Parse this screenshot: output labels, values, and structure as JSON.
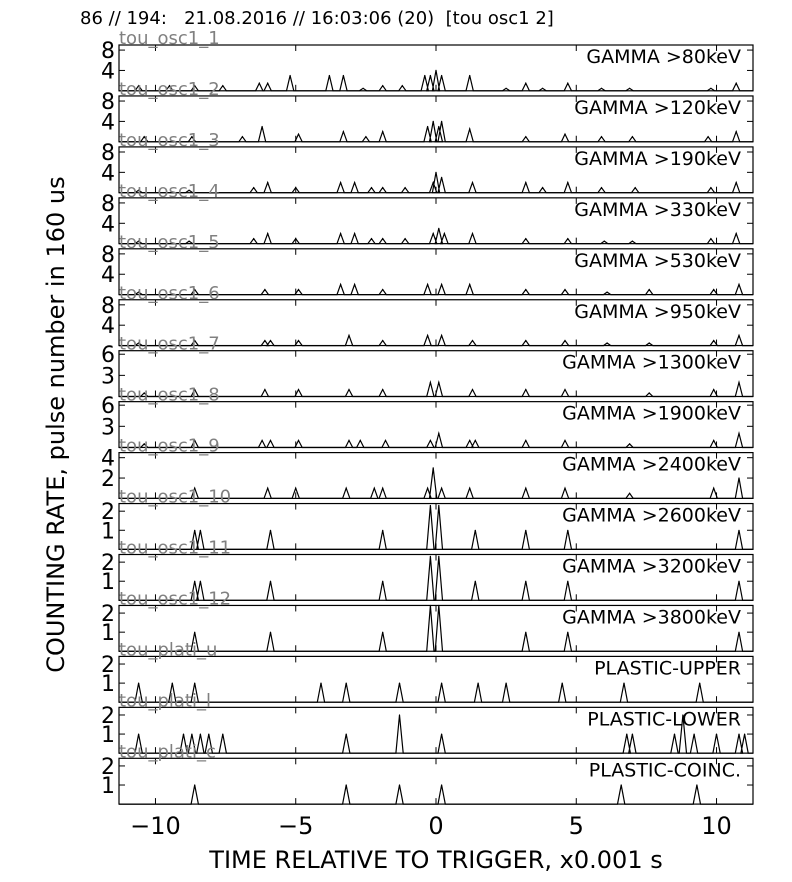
{
  "header": "86 // 194:   21.08.2016 // 16:03:06 (20)  [tou osc1 2]",
  "xlabel": "TIME RELATIVE TO TRIGGER,   x0.001 s",
  "ylabel": "COUNTING RATE,    pulse number in 160 us",
  "colors": {
    "line": "#000000",
    "channel_label": "#808080"
  },
  "chart_data": {
    "type": "line",
    "xlim": [
      -11.3,
      11.3
    ],
    "xticks": [
      -10,
      -5,
      0,
      5,
      10
    ],
    "xtick_labels": [
      "−10",
      "−5",
      "0",
      "5",
      "10"
    ],
    "panels": [
      {
        "channel": "tou_osc1_1",
        "label": "GAMMA >80keV",
        "ylim": [
          0,
          9
        ],
        "yticks": [
          4,
          8
        ],
        "points": [
          [
            -10.6,
            1
          ],
          [
            -9.5,
            1
          ],
          [
            -8.6,
            1
          ],
          [
            -7.6,
            1
          ],
          [
            -6.3,
            1.5
          ],
          [
            -6,
            1.5
          ],
          [
            -5.2,
            3
          ],
          [
            -3.8,
            3
          ],
          [
            -3.3,
            3
          ],
          [
            -2.6,
            0.5
          ],
          [
            -1.9,
            1
          ],
          [
            -1.2,
            1
          ],
          [
            -0.4,
            3
          ],
          [
            -0.2,
            3
          ],
          [
            0,
            4
          ],
          [
            0.2,
            3
          ],
          [
            1.2,
            3
          ],
          [
            2.5,
            0.5
          ],
          [
            3.2,
            1.5
          ],
          [
            3.8,
            0.5
          ],
          [
            4.7,
            1.5
          ],
          [
            5.9,
            0.5
          ],
          [
            6.9,
            0.5
          ],
          [
            9.8,
            0.5
          ],
          [
            10.7,
            1.5
          ]
        ]
      },
      {
        "channel": "tou_osc1_2",
        "label": "GAMMA >120keV",
        "ylim": [
          0,
          9
        ],
        "yticks": [
          4,
          8
        ],
        "points": [
          [
            -10.4,
            1
          ],
          [
            -8.7,
            1
          ],
          [
            -6.9,
            1
          ],
          [
            -6.2,
            3
          ],
          [
            -4.9,
            1.5
          ],
          [
            -3.3,
            2
          ],
          [
            -2.5,
            1
          ],
          [
            -1.9,
            2
          ],
          [
            -0.3,
            3
          ],
          [
            -0.1,
            4
          ],
          [
            0.1,
            3
          ],
          [
            0.2,
            4
          ],
          [
            1.2,
            2.5
          ],
          [
            3.2,
            1
          ],
          [
            4.6,
            1.5
          ],
          [
            5.9,
            1
          ],
          [
            7,
            1
          ],
          [
            9.7,
            1
          ],
          [
            10.7,
            2
          ]
        ]
      },
      {
        "channel": "tou_osc1_3",
        "label": "GAMMA >190keV",
        "ylim": [
          0,
          9
        ],
        "yticks": [
          4,
          8
        ],
        "points": [
          [
            -10.6,
            0.5
          ],
          [
            -8.8,
            0.5
          ],
          [
            -6.5,
            1
          ],
          [
            -6,
            2
          ],
          [
            -5,
            1
          ],
          [
            -3.4,
            2
          ],
          [
            -2.9,
            2
          ],
          [
            -2.3,
            1
          ],
          [
            -1.9,
            1
          ],
          [
            -1.1,
            1
          ],
          [
            -0.1,
            2
          ],
          [
            0,
            4
          ],
          [
            0.2,
            3
          ],
          [
            1.3,
            2
          ],
          [
            3.2,
            2
          ],
          [
            3.8,
            1
          ],
          [
            4.7,
            2
          ],
          [
            5.9,
            1
          ],
          [
            7.1,
            1
          ],
          [
            9.8,
            1
          ],
          [
            10.7,
            2
          ]
        ]
      },
      {
        "channel": "tou_osc1_4",
        "label": "GAMMA >330keV",
        "ylim": [
          0,
          9
        ],
        "yticks": [
          4,
          8
        ],
        "points": [
          [
            -10.6,
            0.5
          ],
          [
            -8.8,
            0.5
          ],
          [
            -6.5,
            1
          ],
          [
            -6,
            2
          ],
          [
            -5,
            1
          ],
          [
            -3.4,
            2
          ],
          [
            -2.9,
            2
          ],
          [
            -2.3,
            1
          ],
          [
            -1.9,
            1
          ],
          [
            -1.1,
            1
          ],
          [
            -0.1,
            2
          ],
          [
            0.1,
            3
          ],
          [
            0.3,
            2
          ],
          [
            1.3,
            2
          ],
          [
            3.2,
            1
          ],
          [
            4.7,
            1
          ],
          [
            6,
            0.5
          ],
          [
            7,
            0.5
          ],
          [
            9.8,
            1
          ],
          [
            10.7,
            2
          ]
        ]
      },
      {
        "channel": "tou_osc1_5",
        "label": "GAMMA >530keV",
        "ylim": [
          0,
          9
        ],
        "yticks": [
          4,
          8
        ],
        "points": [
          [
            -10.6,
            0.5
          ],
          [
            -8.6,
            1
          ],
          [
            -6.1,
            1
          ],
          [
            -4.9,
            1
          ],
          [
            -3.4,
            2
          ],
          [
            -2.9,
            2
          ],
          [
            -1.9,
            1
          ],
          [
            -0.3,
            2
          ],
          [
            0.2,
            2
          ],
          [
            1.2,
            2
          ],
          [
            3.2,
            1
          ],
          [
            4.6,
            1
          ],
          [
            6.1,
            0.5
          ],
          [
            7.6,
            1
          ],
          [
            9.9,
            1
          ],
          [
            10.8,
            2
          ]
        ]
      },
      {
        "channel": "tou_osc1_6",
        "label": "GAMMA >950keV",
        "ylim": [
          0,
          9
        ],
        "yticks": [
          4,
          8
        ],
        "points": [
          [
            -10.6,
            0.5
          ],
          [
            -8.6,
            1
          ],
          [
            -6.1,
            1
          ],
          [
            -5.9,
            1
          ],
          [
            -4.9,
            1
          ],
          [
            -3.1,
            2
          ],
          [
            -1.9,
            1
          ],
          [
            -0.3,
            2
          ],
          [
            0.2,
            2
          ],
          [
            1.3,
            1
          ],
          [
            3.2,
            1
          ],
          [
            4.6,
            1
          ],
          [
            6.1,
            0.5
          ],
          [
            7.6,
            0.5
          ],
          [
            9.9,
            1
          ],
          [
            10.8,
            2
          ]
        ]
      },
      {
        "channel": "tou_osc1_7",
        "label": "GAMMA >1300keV",
        "ylim": [
          0,
          6.5
        ],
        "yticks": [
          3,
          6
        ],
        "points": [
          [
            -10.4,
            0.5
          ],
          [
            -8.6,
            1
          ],
          [
            -6.1,
            1
          ],
          [
            -4.9,
            1
          ],
          [
            -3.1,
            1
          ],
          [
            -1.9,
            1
          ],
          [
            -0.2,
            2
          ],
          [
            0.1,
            2
          ],
          [
            1.3,
            1
          ],
          [
            3.2,
            1
          ],
          [
            4.6,
            1
          ],
          [
            7.6,
            0.5
          ],
          [
            9.9,
            1
          ],
          [
            10.8,
            2
          ]
        ]
      },
      {
        "channel": "tou_osc1_8",
        "label": "GAMMA >1900keV",
        "ylim": [
          0,
          6.5
        ],
        "yticks": [
          3,
          6
        ],
        "points": [
          [
            -10.4,
            0.5
          ],
          [
            -8.6,
            1
          ],
          [
            -6.2,
            1
          ],
          [
            -5.9,
            1
          ],
          [
            -4.9,
            1
          ],
          [
            -3.1,
            1
          ],
          [
            -2.7,
            1
          ],
          [
            -1.8,
            1
          ],
          [
            -0.2,
            1
          ],
          [
            0.1,
            2
          ],
          [
            1.2,
            1
          ],
          [
            1.4,
            1
          ],
          [
            3.2,
            1
          ],
          [
            4.6,
            1
          ],
          [
            6.9,
            0.5
          ],
          [
            9.9,
            1
          ],
          [
            10.8,
            2
          ]
        ]
      },
      {
        "channel": "tou_osc1_9",
        "label": "GAMMA >2400keV",
        "ylim": [
          0,
          4.5
        ],
        "yticks": [
          2,
          4
        ],
        "points": [
          [
            -8.6,
            1
          ],
          [
            -6,
            1
          ],
          [
            -5,
            1
          ],
          [
            -3.2,
            1
          ],
          [
            -2.2,
            1
          ],
          [
            -1.9,
            1
          ],
          [
            -0.3,
            1
          ],
          [
            -0.1,
            3
          ],
          [
            0.2,
            1
          ],
          [
            1.2,
            1
          ],
          [
            3.2,
            1
          ],
          [
            4.6,
            1
          ],
          [
            6.9,
            0.5
          ],
          [
            9.9,
            1
          ],
          [
            10.8,
            2
          ]
        ]
      },
      {
        "channel": "tou_osc1_10",
        "label": "GAMMA >2600keV",
        "ylim": [
          0,
          2.4
        ],
        "yticks": [
          1,
          2
        ],
        "points": [
          [
            -8.6,
            1
          ],
          [
            -8.4,
            1
          ],
          [
            -5.9,
            1
          ],
          [
            -1.9,
            1
          ],
          [
            -0.2,
            2.3
          ],
          [
            0.1,
            2.3
          ],
          [
            1.4,
            1
          ],
          [
            3.2,
            1
          ],
          [
            4.7,
            1
          ],
          [
            10.8,
            1
          ]
        ]
      },
      {
        "channel": "tou_osc1_11",
        "label": "GAMMA >3200keV",
        "ylim": [
          0,
          2.4
        ],
        "yticks": [
          1,
          2
        ],
        "points": [
          [
            -8.6,
            1
          ],
          [
            -8.4,
            1
          ],
          [
            -5.9,
            1
          ],
          [
            -1.9,
            1
          ],
          [
            -0.2,
            2.3
          ],
          [
            0.1,
            2.3
          ],
          [
            1.4,
            1
          ],
          [
            3.2,
            1
          ],
          [
            4.7,
            1
          ],
          [
            10.8,
            1
          ]
        ]
      },
      {
        "channel": "tou_osc1_12",
        "label": "GAMMA >3800keV",
        "ylim": [
          0,
          2.4
        ],
        "yticks": [
          1,
          2
        ],
        "points": [
          [
            -8.6,
            1
          ],
          [
            -5.9,
            1
          ],
          [
            -1.9,
            1
          ],
          [
            -0.2,
            2.4
          ],
          [
            0.1,
            2.4
          ],
          [
            3.2,
            1
          ],
          [
            4.7,
            1
          ],
          [
            10.8,
            1
          ]
        ]
      },
      {
        "channel": "tou_plati_u",
        "label": "PLASTIC-UPPER",
        "ylim": [
          0,
          2.4
        ],
        "yticks": [
          1,
          2
        ],
        "points": [
          [
            -10.6,
            1
          ],
          [
            -9.4,
            1
          ],
          [
            -8.6,
            1
          ],
          [
            -4.1,
            1
          ],
          [
            -3.2,
            1
          ],
          [
            -1.3,
            1
          ],
          [
            0.2,
            1
          ],
          [
            1.5,
            1
          ],
          [
            2.5,
            1
          ],
          [
            4.5,
            1
          ],
          [
            6.7,
            1
          ],
          [
            9.4,
            1
          ]
        ]
      },
      {
        "channel": "tou_plati_l",
        "label": "PLASTIC-LOWER",
        "ylim": [
          0,
          2.4
        ],
        "yticks": [
          1,
          2
        ],
        "points": [
          [
            -10.6,
            1
          ],
          [
            -9,
            1
          ],
          [
            -8.7,
            1
          ],
          [
            -8.4,
            1
          ],
          [
            -8.1,
            1
          ],
          [
            -7.6,
            1
          ],
          [
            -3.2,
            1
          ],
          [
            -1.3,
            2
          ],
          [
            0.2,
            1
          ],
          [
            6.8,
            1
          ],
          [
            7,
            1
          ],
          [
            8.5,
            1
          ],
          [
            8.8,
            2
          ],
          [
            9.2,
            1
          ],
          [
            10,
            1
          ],
          [
            10.8,
            1
          ],
          [
            11,
            1
          ]
        ]
      },
      {
        "channel": "tou_plati_c",
        "label": "PLASTIC-COINC.",
        "ylim": [
          0,
          2.4
        ],
        "yticks": [
          1,
          2
        ],
        "points": [
          [
            -8.6,
            1
          ],
          [
            -3.2,
            1
          ],
          [
            -1.3,
            1
          ],
          [
            0.2,
            1
          ],
          [
            6.6,
            1
          ],
          [
            9.3,
            1
          ]
        ]
      }
    ]
  }
}
